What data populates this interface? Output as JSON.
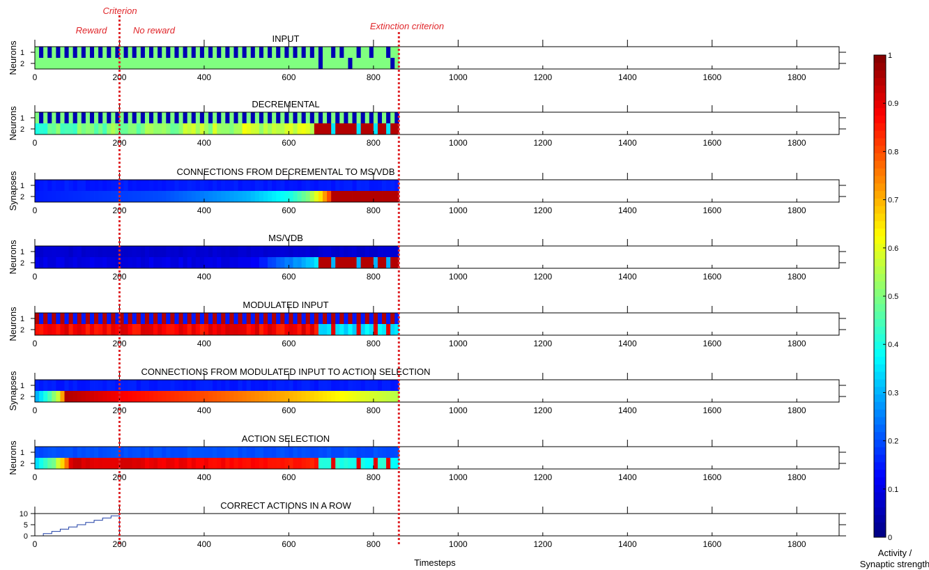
{
  "figure": {
    "annotations": {
      "criterion": "Criterion",
      "reward": "Reward",
      "no_reward": "No reward",
      "extinction": "Extinction criterion"
    },
    "criterion_x": 200,
    "extinction_x": 860,
    "annotation_color": "#e0262a",
    "xlabel": "Timesteps",
    "colorbar": {
      "label_line1": "Activity /",
      "label_line2": "Synaptic strength",
      "range": [
        0,
        1
      ],
      "ticks": [
        "0",
        "0.1",
        "0.2",
        "0.3",
        "0.4",
        "0.5",
        "0.6",
        "0.7",
        "0.8",
        "0.9",
        "1"
      ],
      "colormap": "jet"
    }
  },
  "chart_data": [
    {
      "type": "heatmap",
      "title": "INPUT",
      "ylabel": "Neurons",
      "row_labels": [
        "1",
        "2"
      ],
      "xlim": [
        0,
        1900
      ],
      "data_xlim": [
        0,
        860
      ],
      "x_ticks": [
        "0",
        "200",
        "400",
        "600",
        "800",
        "1000",
        "1200",
        "1400",
        "1600",
        "1800"
      ],
      "rows": [
        {
          "name": "1",
          "pattern": "alternating",
          "values": [
            0.5,
            0.05
          ],
          "period": 20,
          "note": "irregular after ~650"
        },
        {
          "name": "2",
          "pattern": "mostly",
          "value": 0.5,
          "events_value": 0.05,
          "events_at": [
            670,
            740,
            840
          ]
        }
      ]
    },
    {
      "type": "heatmap",
      "title": "DECREMENTAL",
      "ylabel": "Neurons",
      "row_labels": [
        "1",
        "2"
      ],
      "xlim": [
        0,
        1900
      ],
      "data_xlim": [
        0,
        860
      ],
      "x_ticks": [
        "0",
        "200",
        "400",
        "600",
        "800",
        "1000",
        "1200",
        "1400",
        "1600",
        "1800"
      ],
      "rows": [
        {
          "name": "1",
          "pattern": "alternating",
          "values": [
            0.5,
            0.05
          ]
        },
        {
          "name": "2",
          "pattern": "mixed_then_high",
          "values": [
            0.45,
            0.6
          ],
          "high_after": 660,
          "high_value": 0.95
        }
      ]
    },
    {
      "type": "heatmap",
      "title": "CONNECTIONS FROM DECREMENTAL TO MS/VDB",
      "ylabel": "Synapses",
      "row_labels": [
        "1",
        "2"
      ],
      "xlim": [
        0,
        1900
      ],
      "data_xlim": [
        0,
        860
      ],
      "x_ticks": [
        "0",
        "200",
        "400",
        "600",
        "800",
        "1000",
        "1200",
        "1400",
        "1600",
        "1800"
      ],
      "rows": [
        {
          "name": "1",
          "pattern": "constant",
          "value": 0.15
        },
        {
          "name": "2",
          "pattern": "ramp",
          "points": [
            [
              0,
              0.15
            ],
            [
              300,
              0.2
            ],
            [
              500,
              0.3
            ],
            [
              600,
              0.4
            ],
            [
              640,
              0.5
            ],
            [
              670,
              0.65
            ],
            [
              690,
              0.8
            ],
            [
              700,
              0.95
            ],
            [
              860,
              0.95
            ]
          ]
        }
      ]
    },
    {
      "type": "heatmap",
      "title": "MS/VDB",
      "ylabel": "Neurons",
      "row_labels": [
        "1",
        "2"
      ],
      "xlim": [
        0,
        1900
      ],
      "data_xlim": [
        0,
        860
      ],
      "x_ticks": [
        "0",
        "200",
        "400",
        "600",
        "800",
        "1000",
        "1200",
        "1400",
        "1600",
        "1800"
      ],
      "rows": [
        {
          "name": "1",
          "pattern": "constant",
          "value": 0.08
        },
        {
          "name": "2",
          "pattern": "low_then_high",
          "low_value": 0.1,
          "high_after": 665,
          "high_value": 0.95
        }
      ]
    },
    {
      "type": "heatmap",
      "title": "MODULATED INPUT",
      "ylabel": "Neurons",
      "row_labels": [
        "1",
        "2"
      ],
      "xlim": [
        0,
        1900
      ],
      "data_xlim": [
        0,
        860
      ],
      "x_ticks": [
        "0",
        "200",
        "400",
        "600",
        "800",
        "1000",
        "1200",
        "1400",
        "1600",
        "1800"
      ],
      "rows": [
        {
          "name": "1",
          "pattern": "alternating",
          "values": [
            0.95,
            0.15
          ]
        },
        {
          "name": "2",
          "pattern": "high_then_low",
          "high_value": 0.88,
          "low_after": 670,
          "low_value": 0.35
        }
      ]
    },
    {
      "type": "heatmap",
      "title": "CONNECTIONS FROM MODULATED INPUT TO ACTION SELECTION",
      "ylabel": "Synapses",
      "row_labels": [
        "1",
        "2"
      ],
      "xlim": [
        0,
        1900
      ],
      "data_xlim": [
        0,
        860
      ],
      "x_ticks": [
        "0",
        "200",
        "400",
        "600",
        "800",
        "1000",
        "1200",
        "1400",
        "1600",
        "1800"
      ],
      "rows": [
        {
          "name": "1",
          "pattern": "constant",
          "value": 0.15
        },
        {
          "name": "2",
          "pattern": "ramp",
          "points": [
            [
              0,
              0.3
            ],
            [
              30,
              0.45
            ],
            [
              55,
              0.6
            ],
            [
              70,
              0.95
            ],
            [
              200,
              0.88
            ],
            [
              400,
              0.8
            ],
            [
              600,
              0.7
            ],
            [
              760,
              0.6
            ],
            [
              860,
              0.55
            ]
          ]
        }
      ]
    },
    {
      "type": "heatmap",
      "title": "ACTION SELECTION",
      "ylabel": "Neurons",
      "row_labels": [
        "1",
        "2"
      ],
      "xlim": [
        0,
        1900
      ],
      "data_xlim": [
        0,
        860
      ],
      "x_ticks": [
        "0",
        "200",
        "400",
        "600",
        "800",
        "1000",
        "1200",
        "1400",
        "1600",
        "1800"
      ],
      "rows": [
        {
          "name": "1",
          "pattern": "constant",
          "value": 0.2
        },
        {
          "name": "2",
          "pattern": "ramp_then_mixed",
          "points": [
            [
              0,
              0.35
            ],
            [
              40,
              0.5
            ],
            [
              65,
              0.7
            ],
            [
              80,
              0.92
            ],
            [
              400,
              0.88
            ],
            [
              660,
              0.85
            ]
          ],
          "low_after": 670,
          "low_value": 0.4
        }
      ]
    },
    {
      "type": "line",
      "title": "CORRECT ACTIONS IN A ROW",
      "ylabel": "",
      "xlim": [
        0,
        1900
      ],
      "ylim": [
        0,
        10
      ],
      "x_ticks": [
        "0",
        "200",
        "400",
        "600",
        "800",
        "1000",
        "1200",
        "1400",
        "1600",
        "1800"
      ],
      "y_ticks": [
        "0",
        "5",
        "10"
      ],
      "series": [
        {
          "x": [
            0,
            20,
            20,
            40,
            40,
            60,
            60,
            80,
            80,
            100,
            100,
            120,
            120,
            140,
            140,
            160,
            160,
            180,
            180,
            200,
            200,
            860
          ],
          "y": [
            0,
            0,
            1,
            1,
            2,
            2,
            3,
            3,
            4,
            4,
            5,
            5,
            6,
            6,
            7,
            7,
            8,
            8,
            9,
            9,
            0,
            0
          ]
        }
      ]
    }
  ]
}
